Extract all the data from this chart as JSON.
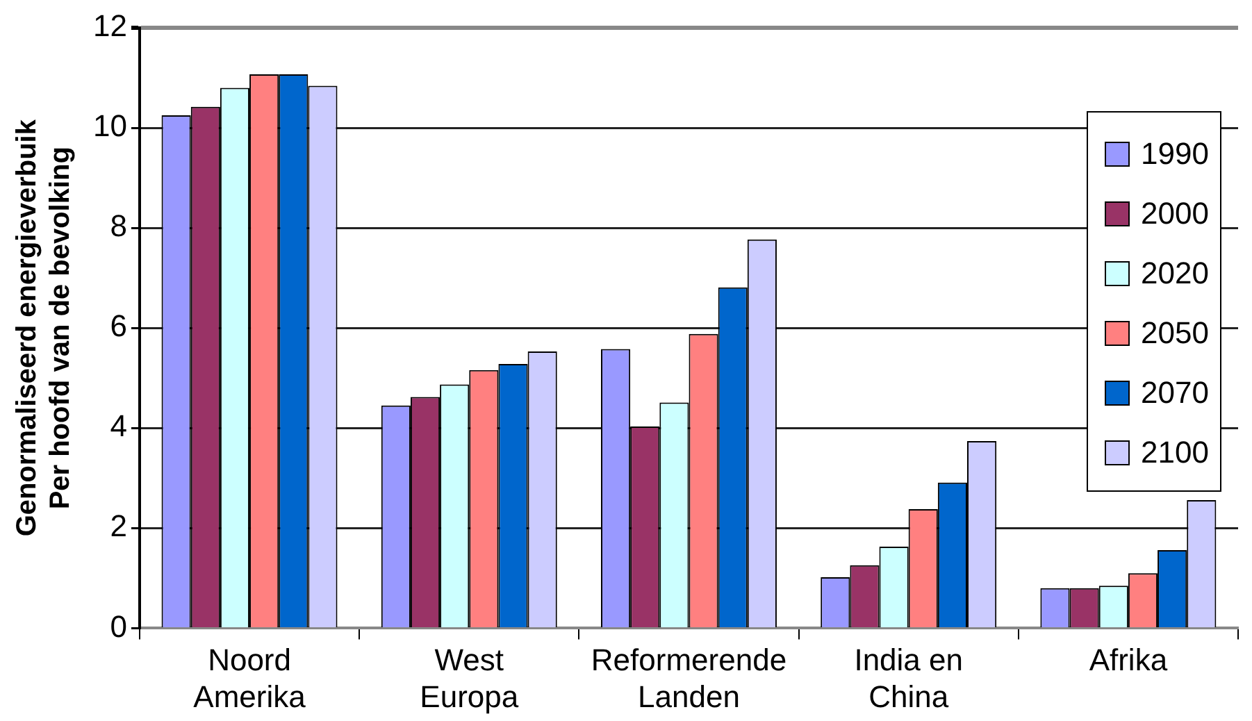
{
  "chart_data": {
    "type": "bar",
    "ylabel": "Genormaliseerd energieverbuik\nPer hoofd van de bevolking",
    "categories": [
      "Noord\nAmerika",
      "West\nEuropa",
      "Reformerende\nLanden",
      "India en\nChina",
      "Afrika"
    ],
    "series": [
      {
        "name": "1990",
        "color": "#9999ff",
        "values": [
          10.25,
          4.45,
          5.58,
          1.02,
          0.8
        ]
      },
      {
        "name": "2000",
        "color": "#993366",
        "values": [
          10.42,
          4.62,
          4.03,
          1.26,
          0.8
        ]
      },
      {
        "name": "2020",
        "color": "#ccffff",
        "values": [
          10.8,
          4.87,
          4.51,
          1.63,
          0.85
        ]
      },
      {
        "name": "2050",
        "color": "#ff8080",
        "values": [
          11.07,
          5.16,
          5.88,
          2.38,
          1.1
        ]
      },
      {
        "name": "2070",
        "color": "#0066cc",
        "values": [
          11.07,
          5.28,
          6.81,
          2.91,
          1.56
        ]
      },
      {
        "name": "2100",
        "color": "#ccccff",
        "values": [
          10.84,
          5.53,
          7.77,
          3.74,
          2.56
        ]
      }
    ],
    "ylim": [
      0,
      12
    ],
    "yticks": [
      0,
      2,
      4,
      6,
      8,
      10,
      12
    ],
    "grid": "y",
    "legend": "right"
  }
}
